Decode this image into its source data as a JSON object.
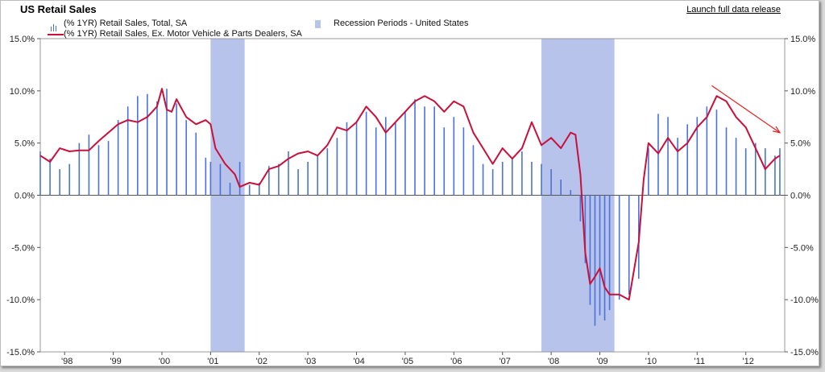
{
  "header": {
    "title": "US Retail Sales",
    "link_label": "Launch full data release"
  },
  "legend": {
    "total_label": "(% 1YR) Retail Sales, Total, SA",
    "recession_label": "Recession Periods - United States",
    "ex_auto_label": "(% 1YR) Retail Sales, Ex. Motor Vehicle & Parts Dealers, SA"
  },
  "colors": {
    "bar": "#4a72d8",
    "line": "#c8103a",
    "recession": "#b8c3ec",
    "annotation_arrow": "#e52020"
  },
  "chart_data": {
    "type": "bar",
    "title": "US Retail Sales",
    "x_range": [
      1997.5,
      2012.8
    ],
    "ylim": [
      -15,
      15
    ],
    "y_ticks": [
      15,
      10,
      5,
      0,
      -5,
      -10,
      -15
    ],
    "y_tick_labels": [
      "15.0%",
      "10.0%",
      "5.0%",
      "0.0%",
      "-5.0%",
      "-10.0%",
      "-15.0%"
    ],
    "x_tick_labels": [
      "'98",
      "'99",
      "'00",
      "'01",
      "'02",
      "'03",
      "'04",
      "'05",
      "'06",
      "'07",
      "'08",
      "'09",
      "'10",
      "'11",
      "'12"
    ],
    "x_tick_values": [
      1998,
      1999,
      2000,
      2001,
      2002,
      2003,
      2004,
      2005,
      2006,
      2007,
      2008,
      2009,
      2010,
      2011,
      2012
    ],
    "grid": false,
    "legend_position": "top-left",
    "recessions": [
      {
        "start": 2001.0,
        "end": 2001.7
      },
      {
        "start": 2007.8,
        "end": 2009.3
      }
    ],
    "series": [
      {
        "name": "(% 1YR) Retail Sales, Total, SA",
        "kind": "bar",
        "points": [
          [
            1997.5,
            4.2
          ],
          [
            1997.7,
            3.5
          ],
          [
            1997.9,
            2.5
          ],
          [
            1998.1,
            3.0
          ],
          [
            1998.3,
            5.0
          ],
          [
            1998.5,
            5.8
          ],
          [
            1998.7,
            4.8
          ],
          [
            1998.9,
            5.2
          ],
          [
            1999.1,
            7.2
          ],
          [
            1999.3,
            8.5
          ],
          [
            1999.5,
            9.5
          ],
          [
            1999.7,
            9.7
          ],
          [
            1999.9,
            9.0
          ],
          [
            2000.1,
            10.2
          ],
          [
            2000.3,
            8.8
          ],
          [
            2000.5,
            7.2
          ],
          [
            2000.7,
            6.0
          ],
          [
            2000.9,
            3.6
          ],
          [
            2001.0,
            3.2
          ],
          [
            2001.2,
            3.0
          ],
          [
            2001.4,
            1.2
          ],
          [
            2001.6,
            3.2
          ],
          [
            2001.8,
            1.0
          ],
          [
            2002.0,
            1.2
          ],
          [
            2002.2,
            2.8
          ],
          [
            2002.4,
            3.0
          ],
          [
            2002.6,
            4.2
          ],
          [
            2002.8,
            2.5
          ],
          [
            2003.0,
            3.2
          ],
          [
            2003.2,
            3.8
          ],
          [
            2003.4,
            4.5
          ],
          [
            2003.6,
            5.5
          ],
          [
            2003.8,
            7.0
          ],
          [
            2004.0,
            7.0
          ],
          [
            2004.2,
            8.0
          ],
          [
            2004.4,
            6.5
          ],
          [
            2004.6,
            7.5
          ],
          [
            2004.8,
            7.0
          ],
          [
            2005.0,
            8.0
          ],
          [
            2005.2,
            9.2
          ],
          [
            2005.4,
            8.5
          ],
          [
            2005.6,
            8.5
          ],
          [
            2005.8,
            6.5
          ],
          [
            2006.0,
            7.5
          ],
          [
            2006.2,
            6.5
          ],
          [
            2006.4,
            4.8
          ],
          [
            2006.6,
            3.0
          ],
          [
            2006.8,
            2.5
          ],
          [
            2007.0,
            3.2
          ],
          [
            2007.2,
            3.5
          ],
          [
            2007.4,
            4.2
          ],
          [
            2007.6,
            3.2
          ],
          [
            2007.8,
            3.0
          ],
          [
            2008.0,
            2.5
          ],
          [
            2008.2,
            1.5
          ],
          [
            2008.4,
            0.5
          ],
          [
            2008.6,
            -2.5
          ],
          [
            2008.7,
            -6.5
          ],
          [
            2008.8,
            -10.5
          ],
          [
            2008.9,
            -12.5
          ],
          [
            2009.0,
            -11.5
          ],
          [
            2009.1,
            -12.0
          ],
          [
            2009.2,
            -11.0
          ],
          [
            2009.4,
            -10.0
          ],
          [
            2009.6,
            -9.5
          ],
          [
            2009.8,
            -8.0
          ],
          [
            2010.0,
            4.5
          ],
          [
            2010.2,
            7.8
          ],
          [
            2010.4,
            7.5
          ],
          [
            2010.6,
            5.5
          ],
          [
            2010.8,
            6.8
          ],
          [
            2011.0,
            7.5
          ],
          [
            2011.2,
            8.5
          ],
          [
            2011.4,
            8.2
          ],
          [
            2011.6,
            6.5
          ],
          [
            2011.8,
            5.5
          ],
          [
            2012.0,
            4.5
          ],
          [
            2012.2,
            5.0
          ],
          [
            2012.4,
            4.5
          ],
          [
            2012.6,
            3.8
          ],
          [
            2012.7,
            4.5
          ]
        ]
      },
      {
        "name": "(% 1YR) Retail Sales, Ex. Motor Vehicle & Parts Dealers, SA",
        "kind": "line",
        "points": [
          [
            1997.5,
            3.8
          ],
          [
            1997.7,
            3.2
          ],
          [
            1997.9,
            4.5
          ],
          [
            1998.1,
            4.2
          ],
          [
            1998.3,
            4.3
          ],
          [
            1998.5,
            4.3
          ],
          [
            1998.7,
            5.2
          ],
          [
            1998.9,
            6.0
          ],
          [
            1999.1,
            6.8
          ],
          [
            1999.3,
            7.2
          ],
          [
            1999.5,
            7.0
          ],
          [
            1999.7,
            7.5
          ],
          [
            1999.9,
            8.5
          ],
          [
            2000.0,
            10.2
          ],
          [
            2000.1,
            8.2
          ],
          [
            2000.2,
            8.0
          ],
          [
            2000.3,
            9.2
          ],
          [
            2000.5,
            7.5
          ],
          [
            2000.7,
            6.8
          ],
          [
            2000.9,
            7.2
          ],
          [
            2001.0,
            6.8
          ],
          [
            2001.1,
            4.5
          ],
          [
            2001.3,
            3.0
          ],
          [
            2001.5,
            2.0
          ],
          [
            2001.6,
            0.8
          ],
          [
            2001.8,
            1.2
          ],
          [
            2002.0,
            1.0
          ],
          [
            2002.2,
            2.5
          ],
          [
            2002.4,
            2.8
          ],
          [
            2002.6,
            3.5
          ],
          [
            2002.8,
            4.0
          ],
          [
            2003.0,
            4.2
          ],
          [
            2003.2,
            3.8
          ],
          [
            2003.4,
            4.8
          ],
          [
            2003.6,
            6.5
          ],
          [
            2003.8,
            6.2
          ],
          [
            2004.0,
            7.0
          ],
          [
            2004.2,
            8.5
          ],
          [
            2004.4,
            7.5
          ],
          [
            2004.6,
            6.0
          ],
          [
            2004.8,
            7.0
          ],
          [
            2005.0,
            8.0
          ],
          [
            2005.2,
            9.0
          ],
          [
            2005.4,
            9.5
          ],
          [
            2005.6,
            9.0
          ],
          [
            2005.8,
            8.0
          ],
          [
            2006.0,
            9.0
          ],
          [
            2006.2,
            8.5
          ],
          [
            2006.4,
            6.0
          ],
          [
            2006.6,
            4.5
          ],
          [
            2006.8,
            3.0
          ],
          [
            2007.0,
            4.5
          ],
          [
            2007.2,
            3.5
          ],
          [
            2007.4,
            4.5
          ],
          [
            2007.6,
            7.0
          ],
          [
            2007.8,
            4.8
          ],
          [
            2008.0,
            5.5
          ],
          [
            2008.2,
            4.5
          ],
          [
            2008.4,
            6.0
          ],
          [
            2008.5,
            5.8
          ],
          [
            2008.6,
            2.0
          ],
          [
            2008.7,
            -5.5
          ],
          [
            2008.8,
            -8.5
          ],
          [
            2008.9,
            -7.8
          ],
          [
            2009.0,
            -7.0
          ],
          [
            2009.1,
            -8.8
          ],
          [
            2009.2,
            -9.5
          ],
          [
            2009.4,
            -9.5
          ],
          [
            2009.6,
            -10.0
          ],
          [
            2009.8,
            -4.5
          ],
          [
            2009.9,
            1.5
          ],
          [
            2010.0,
            5.0
          ],
          [
            2010.2,
            4.0
          ],
          [
            2010.4,
            5.5
          ],
          [
            2010.6,
            4.2
          ],
          [
            2010.8,
            5.0
          ],
          [
            2011.0,
            6.5
          ],
          [
            2011.2,
            7.5
          ],
          [
            2011.4,
            9.5
          ],
          [
            2011.6,
            9.0
          ],
          [
            2011.8,
            7.5
          ],
          [
            2012.0,
            6.5
          ],
          [
            2012.2,
            4.5
          ],
          [
            2012.4,
            2.5
          ],
          [
            2012.6,
            3.5
          ],
          [
            2012.7,
            3.8
          ]
        ]
      }
    ],
    "annotation": {
      "type": "arrow",
      "from": [
        2011.3,
        10.5
      ],
      "to": [
        2012.7,
        6.0
      ]
    }
  }
}
